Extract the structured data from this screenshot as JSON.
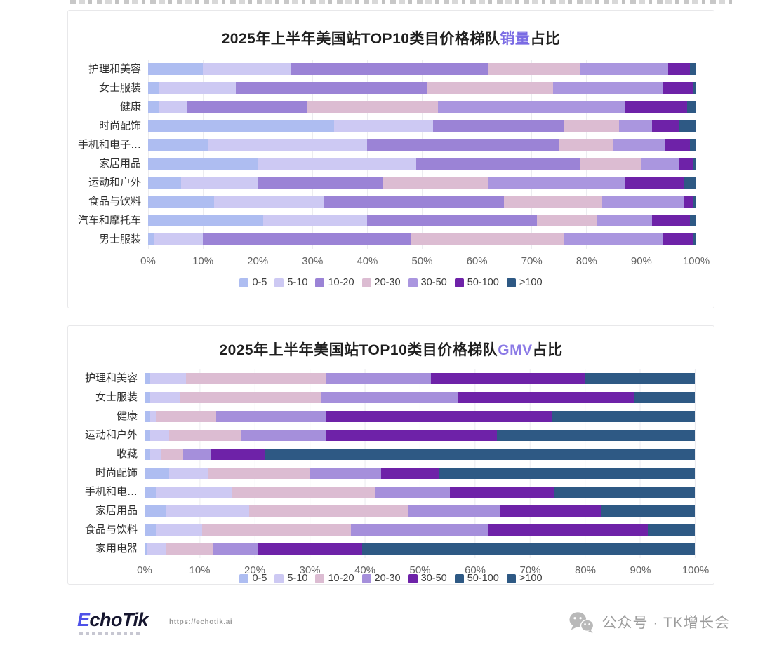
{
  "chart_data": [
    {
      "type": "bar",
      "orientation": "horizontal",
      "stacked": true,
      "title_prefix": "2025年上半年美国站TOP10类目价格梯队",
      "title_highlight": "销量",
      "title_suffix": "占比",
      "highlight_color": "#7a6be4",
      "xlim": [
        0,
        100
      ],
      "x_ticks": [
        "0%",
        "10%",
        "20%",
        "30%",
        "40%",
        "50%",
        "60%",
        "70%",
        "80%",
        "90%",
        "100%"
      ],
      "grid": true,
      "legend_position": "bottom",
      "categories": [
        "护理和美容",
        "女士服装",
        "健康",
        "时尚配饰",
        "手机和电子…",
        "家居用品",
        "运动和户外",
        "食品与饮料",
        "汽车和摩托车",
        "男士服装"
      ],
      "series": [
        {
          "name": "0-5",
          "color": "#aebdf1",
          "values": [
            10,
            2,
            2,
            34,
            11,
            20,
            6,
            12,
            21,
            1
          ]
        },
        {
          "name": "5-10",
          "color": "#cdc9f3",
          "values": [
            16,
            14,
            5,
            18,
            29,
            29,
            14,
            20,
            19,
            9
          ]
        },
        {
          "name": "10-20",
          "color": "#9b83d6",
          "values": [
            36,
            35,
            22,
            24,
            35,
            30,
            23,
            33,
            31,
            38
          ]
        },
        {
          "name": "20-30",
          "color": "#dcbcd2",
          "values": [
            17,
            23,
            24,
            10,
            10,
            11,
            19,
            18,
            11,
            28
          ]
        },
        {
          "name": "30-50",
          "color": "#aa96df",
          "values": [
            16,
            20,
            34,
            6,
            9.5,
            7,
            25,
            15,
            10,
            18
          ]
        },
        {
          "name": "50-100",
          "color": "#6e22a8",
          "values": [
            4,
            5.5,
            11.5,
            5,
            4.5,
            2.5,
            11,
            1.5,
            7,
            5.5
          ]
        },
        {
          "name": ">100",
          "color": "#2e5984",
          "values": [
            1,
            0.5,
            1.5,
            3,
            1,
            0.5,
            2,
            0.5,
            1,
            0.5
          ]
        }
      ]
    },
    {
      "type": "bar",
      "orientation": "horizontal",
      "stacked": true,
      "title_prefix": "2025年上半年美国站TOP10类目价格梯队",
      "title_highlight": "GMV",
      "title_suffix": "占比",
      "highlight_color": "#8b7ae6",
      "xlim": [
        0,
        100
      ],
      "x_ticks": [
        "0%",
        "10%",
        "20%",
        "30%",
        "40%",
        "50%",
        "60%",
        "70%",
        "80%",
        "90%",
        "100%"
      ],
      "grid": true,
      "legend_position": "bottom",
      "categories": [
        "护理和美容",
        "女士服装",
        "健康",
        "运动和户外",
        "收藏",
        "时尚配饰",
        "手机和电…",
        "家居用品",
        "食品与饮料",
        "家用电器"
      ],
      "series": [
        {
          "name": "0-5",
          "color": "#aebdf1",
          "values": [
            1,
            1,
            1,
            1,
            1,
            4.5,
            2,
            4,
            2,
            0.5
          ]
        },
        {
          "name": "5-10",
          "color": "#cdc9f3",
          "values": [
            6.5,
            5.5,
            1,
            3.5,
            2,
            7,
            14,
            15,
            8.5,
            3.5
          ]
        },
        {
          "name": "10-20",
          "color": "#dcbcd2",
          "values": [
            25.5,
            25.5,
            11,
            13,
            4,
            18.5,
            26,
            29,
            27,
            8.5
          ]
        },
        {
          "name": "20-30",
          "color": "#a58fdb",
          "values": [
            19,
            25,
            20,
            15.5,
            5,
            13,
            13.5,
            16.5,
            25,
            8
          ]
        },
        {
          "name": "30-50",
          "color": "#6e22a8",
          "values": [
            28,
            32,
            41,
            31,
            10,
            10.5,
            19,
            18.5,
            29,
            19
          ]
        },
        {
          "name": "50-100",
          "color": "#2e5984",
          "values": [
            13,
            7,
            16,
            22,
            45,
            28,
            15,
            10,
            5.5,
            36
          ]
        },
        {
          "name": ">100",
          "color": "#2e5984",
          "values": [
            7,
            4,
            10,
            14,
            33,
            18.5,
            10.5,
            7,
            3,
            24.5
          ]
        }
      ]
    }
  ],
  "footer": {
    "logo_e": "E",
    "logo_rest": "choTik",
    "url": "https://echotik.ai",
    "wechat_label": "公众号 · TK增长会"
  }
}
